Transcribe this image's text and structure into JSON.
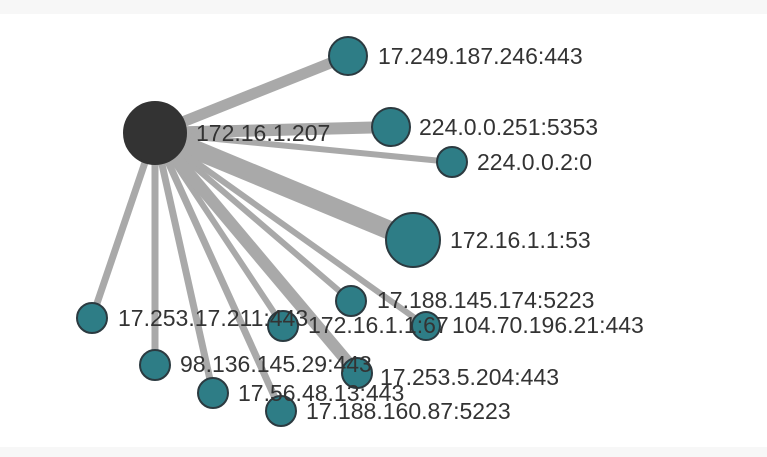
{
  "colors": {
    "hub_node": "#333333",
    "endpoint_node": "#2e7d86",
    "edge": "#a9a9a9",
    "label": "#333333",
    "background": "#ffffff"
  },
  "graph": {
    "hub": {
      "label": "172.16.1.207"
    },
    "endpoints": [
      {
        "label": "17.249.187.246:443"
      },
      {
        "label": "224.0.0.251:5353"
      },
      {
        "label": "224.0.0.2:0"
      },
      {
        "label": "172.16.1.1:53"
      },
      {
        "label": "17.188.145.174:5223"
      },
      {
        "label": "17.253.17.211:443"
      },
      {
        "label": "172.16.1.1:67"
      },
      {
        "label": "104.70.196.21:443"
      },
      {
        "label": "98.136.145.29:443"
      },
      {
        "label": "17.253.5.204:443"
      },
      {
        "label": "17.56.48.13:443"
      },
      {
        "label": "17.188.160.87:5223"
      }
    ]
  }
}
